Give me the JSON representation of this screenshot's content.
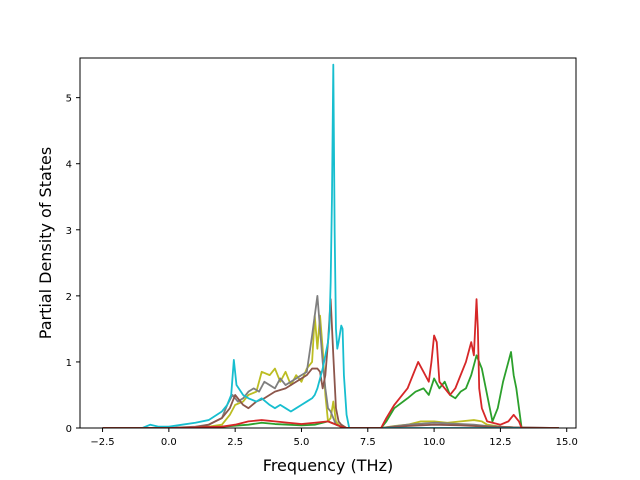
{
  "chart_data": {
    "type": "line",
    "title": "",
    "xlabel": "Frequency (THz)",
    "ylabel": "Partial Density of States",
    "xlim": [
      -3.35,
      15.35
    ],
    "ylim": [
      0,
      5.6
    ],
    "xticks": [
      -2.5,
      0.0,
      2.5,
      5.0,
      7.5,
      10.0,
      12.5,
      15.0
    ],
    "xtick_labels": [
      "−2.5",
      "0.0",
      "2.5",
      "5.0",
      "7.5",
      "10.0",
      "12.5",
      "15.0"
    ],
    "yticks": [
      0,
      1,
      2,
      3,
      4,
      5
    ],
    "ytick_labels": [
      "0",
      "1",
      "2",
      "3",
      "4",
      "5"
    ],
    "grid": false,
    "legend": "none",
    "series": [
      {
        "color": "#bcbd22",
        "x": [
          -2.5,
          0,
          1,
          1.5,
          2,
          2.3,
          2.5,
          2.8,
          3,
          3.3,
          3.5,
          3.8,
          4,
          4.2,
          4.4,
          4.6,
          4.8,
          5,
          5.2,
          5.4,
          5.5,
          5.6,
          5.7,
          5.8,
          5.9,
          6,
          6.1,
          6.2,
          6.3,
          6.4,
          6.5,
          6.7,
          8,
          8.5,
          9,
          9.5,
          10,
          10.5,
          11,
          11.5,
          11.8,
          12,
          12.5,
          13,
          13.3,
          14.7
        ],
        "y": [
          0,
          0,
          0,
          0.02,
          0.05,
          0.2,
          0.35,
          0.4,
          0.5,
          0.55,
          0.85,
          0.8,
          0.9,
          0.7,
          0.85,
          0.65,
          0.8,
          0.7,
          0.9,
          1.0,
          1.7,
          1.2,
          1.7,
          1.2,
          0.5,
          0.1,
          0.15,
          0.4,
          0.1,
          0.05,
          0,
          0,
          0,
          0.03,
          0.05,
          0.1,
          0.1,
          0.08,
          0.1,
          0.12,
          0.1,
          0.05,
          0.02,
          0.01,
          0,
          0
        ]
      },
      {
        "color": "#7f7f7f",
        "x": [
          -2.5,
          0,
          1,
          1.5,
          2,
          2.2,
          2.4,
          2.6,
          2.8,
          3,
          3.2,
          3.4,
          3.6,
          3.8,
          4,
          4.2,
          4.4,
          4.6,
          4.8,
          5,
          5.2,
          5.4,
          5.6,
          5.7,
          5.8,
          5.9,
          6,
          6.1,
          6.2,
          6.3,
          6.5,
          6.7,
          8,
          9,
          10,
          11,
          11.5,
          12,
          13,
          14.7
        ],
        "y": [
          0,
          0,
          0.02,
          0.05,
          0.15,
          0.35,
          0.5,
          0.4,
          0.45,
          0.55,
          0.6,
          0.55,
          0.7,
          0.65,
          0.6,
          0.75,
          0.65,
          0.7,
          0.75,
          0.8,
          0.85,
          1.4,
          2.0,
          1.5,
          1.0,
          0.6,
          0.3,
          0.25,
          0.15,
          0.05,
          0.02,
          0,
          0,
          0.05,
          0.08,
          0.06,
          0.05,
          0.03,
          0.01,
          0
        ]
      },
      {
        "color": "#8c564b",
        "x": [
          -2.5,
          0,
          1,
          1.5,
          2,
          2.3,
          2.5,
          2.8,
          3,
          3.3,
          3.6,
          4,
          4.4,
          4.8,
          5,
          5.2,
          5.4,
          5.6,
          5.7,
          5.8,
          5.9,
          6,
          6.1,
          6.2,
          6.3,
          6.4,
          6.5,
          6.7,
          8,
          9,
          10,
          11,
          11.5,
          12,
          13,
          14.7
        ],
        "y": [
          0,
          0,
          0.01,
          0.05,
          0.15,
          0.3,
          0.5,
          0.35,
          0.3,
          0.4,
          0.45,
          0.55,
          0.6,
          0.7,
          0.75,
          0.8,
          0.9,
          0.9,
          0.85,
          0.6,
          0.8,
          1.3,
          1.95,
          1.1,
          0.3,
          0.1,
          0.05,
          0,
          0,
          0.03,
          0.05,
          0.04,
          0.03,
          0.02,
          0.01,
          0
        ]
      },
      {
        "color": "#17becf",
        "x": [
          -2.5,
          -1,
          -0.7,
          -0.4,
          0,
          0.5,
          1,
          1.5,
          2,
          2.2,
          2.35,
          2.45,
          2.55,
          2.8,
          3,
          3.3,
          3.5,
          3.8,
          4,
          4.2,
          4.4,
          4.6,
          4.8,
          5,
          5.2,
          5.4,
          5.5,
          5.6,
          5.7,
          5.8,
          5.9,
          6,
          6.05,
          6.1,
          6.15,
          6.2,
          6.25,
          6.3,
          6.35,
          6.4,
          6.5,
          6.55,
          6.6,
          6.7,
          6.8,
          14.7
        ],
        "y": [
          0,
          0,
          0.05,
          0.02,
          0.02,
          0.05,
          0.08,
          0.12,
          0.25,
          0.35,
          0.5,
          1.03,
          0.65,
          0.5,
          0.45,
          0.4,
          0.45,
          0.35,
          0.3,
          0.35,
          0.3,
          0.25,
          0.3,
          0.35,
          0.4,
          0.45,
          0.5,
          0.6,
          0.75,
          0.9,
          1.1,
          1.3,
          1.5,
          2.2,
          3.5,
          5.5,
          3.0,
          1.5,
          1.2,
          1.3,
          1.55,
          1.5,
          0.8,
          0.2,
          0,
          0
        ]
      },
      {
        "color": "#2ca02c",
        "x": [
          -2.5,
          0,
          2,
          3,
          3.5,
          4,
          4.5,
          5,
          5.5,
          6,
          6.5,
          6.7,
          8,
          8.2,
          8.5,
          9,
          9.3,
          9.6,
          9.8,
          10,
          10.2,
          10.4,
          10.6,
          10.8,
          11,
          11.2,
          11.4,
          11.6,
          11.8,
          12,
          12.2,
          12.4,
          12.6,
          12.8,
          12.9,
          13,
          13.1,
          13.2,
          13.3,
          14.7
        ],
        "y": [
          0,
          0,
          0.02,
          0.05,
          0.08,
          0.06,
          0.05,
          0.04,
          0.05,
          0.1,
          0.02,
          0,
          0,
          0.1,
          0.3,
          0.45,
          0.55,
          0.6,
          0.5,
          0.75,
          0.6,
          0.7,
          0.5,
          0.45,
          0.55,
          0.6,
          0.8,
          1.1,
          0.9,
          0.5,
          0.1,
          0.3,
          0.7,
          1.0,
          1.15,
          0.8,
          0.6,
          0.3,
          0,
          0
        ]
      },
      {
        "color": "#d62728",
        "x": [
          -2.5,
          0,
          2,
          2.5,
          3,
          3.5,
          4,
          4.5,
          5,
          5.5,
          6,
          6.5,
          6.7,
          8,
          8.2,
          8.5,
          8.8,
          9,
          9.2,
          9.4,
          9.6,
          9.8,
          9.9,
          10,
          10.1,
          10.2,
          10.4,
          10.6,
          10.8,
          11,
          11.2,
          11.4,
          11.5,
          11.6,
          11.65,
          11.7,
          11.8,
          12,
          12.5,
          12.8,
          13,
          13.2,
          13.3,
          14.7
        ],
        "y": [
          0,
          0,
          0.02,
          0.05,
          0.1,
          0.12,
          0.1,
          0.08,
          0.06,
          0.08,
          0.1,
          0.02,
          0,
          0,
          0.15,
          0.35,
          0.5,
          0.6,
          0.8,
          1.0,
          0.85,
          0.7,
          1.0,
          1.4,
          1.3,
          0.7,
          0.6,
          0.5,
          0.6,
          0.8,
          1.0,
          1.3,
          1.1,
          1.95,
          1.5,
          0.6,
          0.3,
          0.1,
          0.05,
          0.1,
          0.2,
          0.1,
          0,
          0
        ]
      }
    ]
  }
}
